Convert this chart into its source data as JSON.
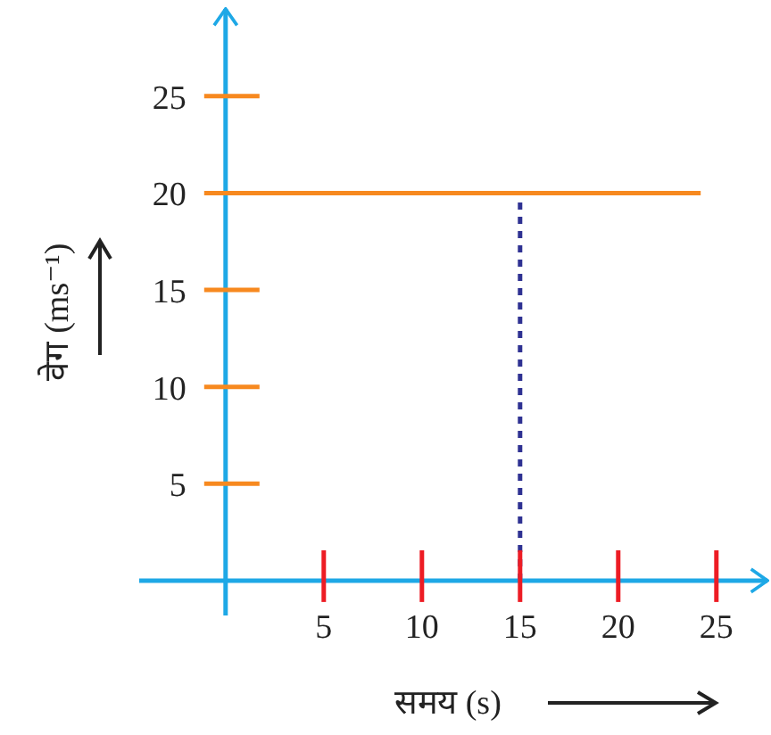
{
  "chart_data": {
    "type": "line",
    "xlabel": "समय (s)",
    "ylabel": "वेग (ms⁻¹)",
    "series": [
      {
        "color": "#f7891f",
        "x": [
          0,
          24.2
        ],
        "values": [
          20,
          20
        ]
      }
    ],
    "xlim": [
      -4.4,
      27.6
    ],
    "ylim": [
      -1.8,
      29.5
    ],
    "xticks": [
      5,
      10,
      15,
      20,
      25
    ],
    "yticks": [
      5,
      10,
      15,
      20,
      25
    ],
    "ref_lines": [
      {
        "axis": "x",
        "value": 15,
        "color": "#2e3192",
        "line_style": "dotted"
      }
    ],
    "grid": false,
    "marker": "none",
    "line_style": "solid"
  }
}
